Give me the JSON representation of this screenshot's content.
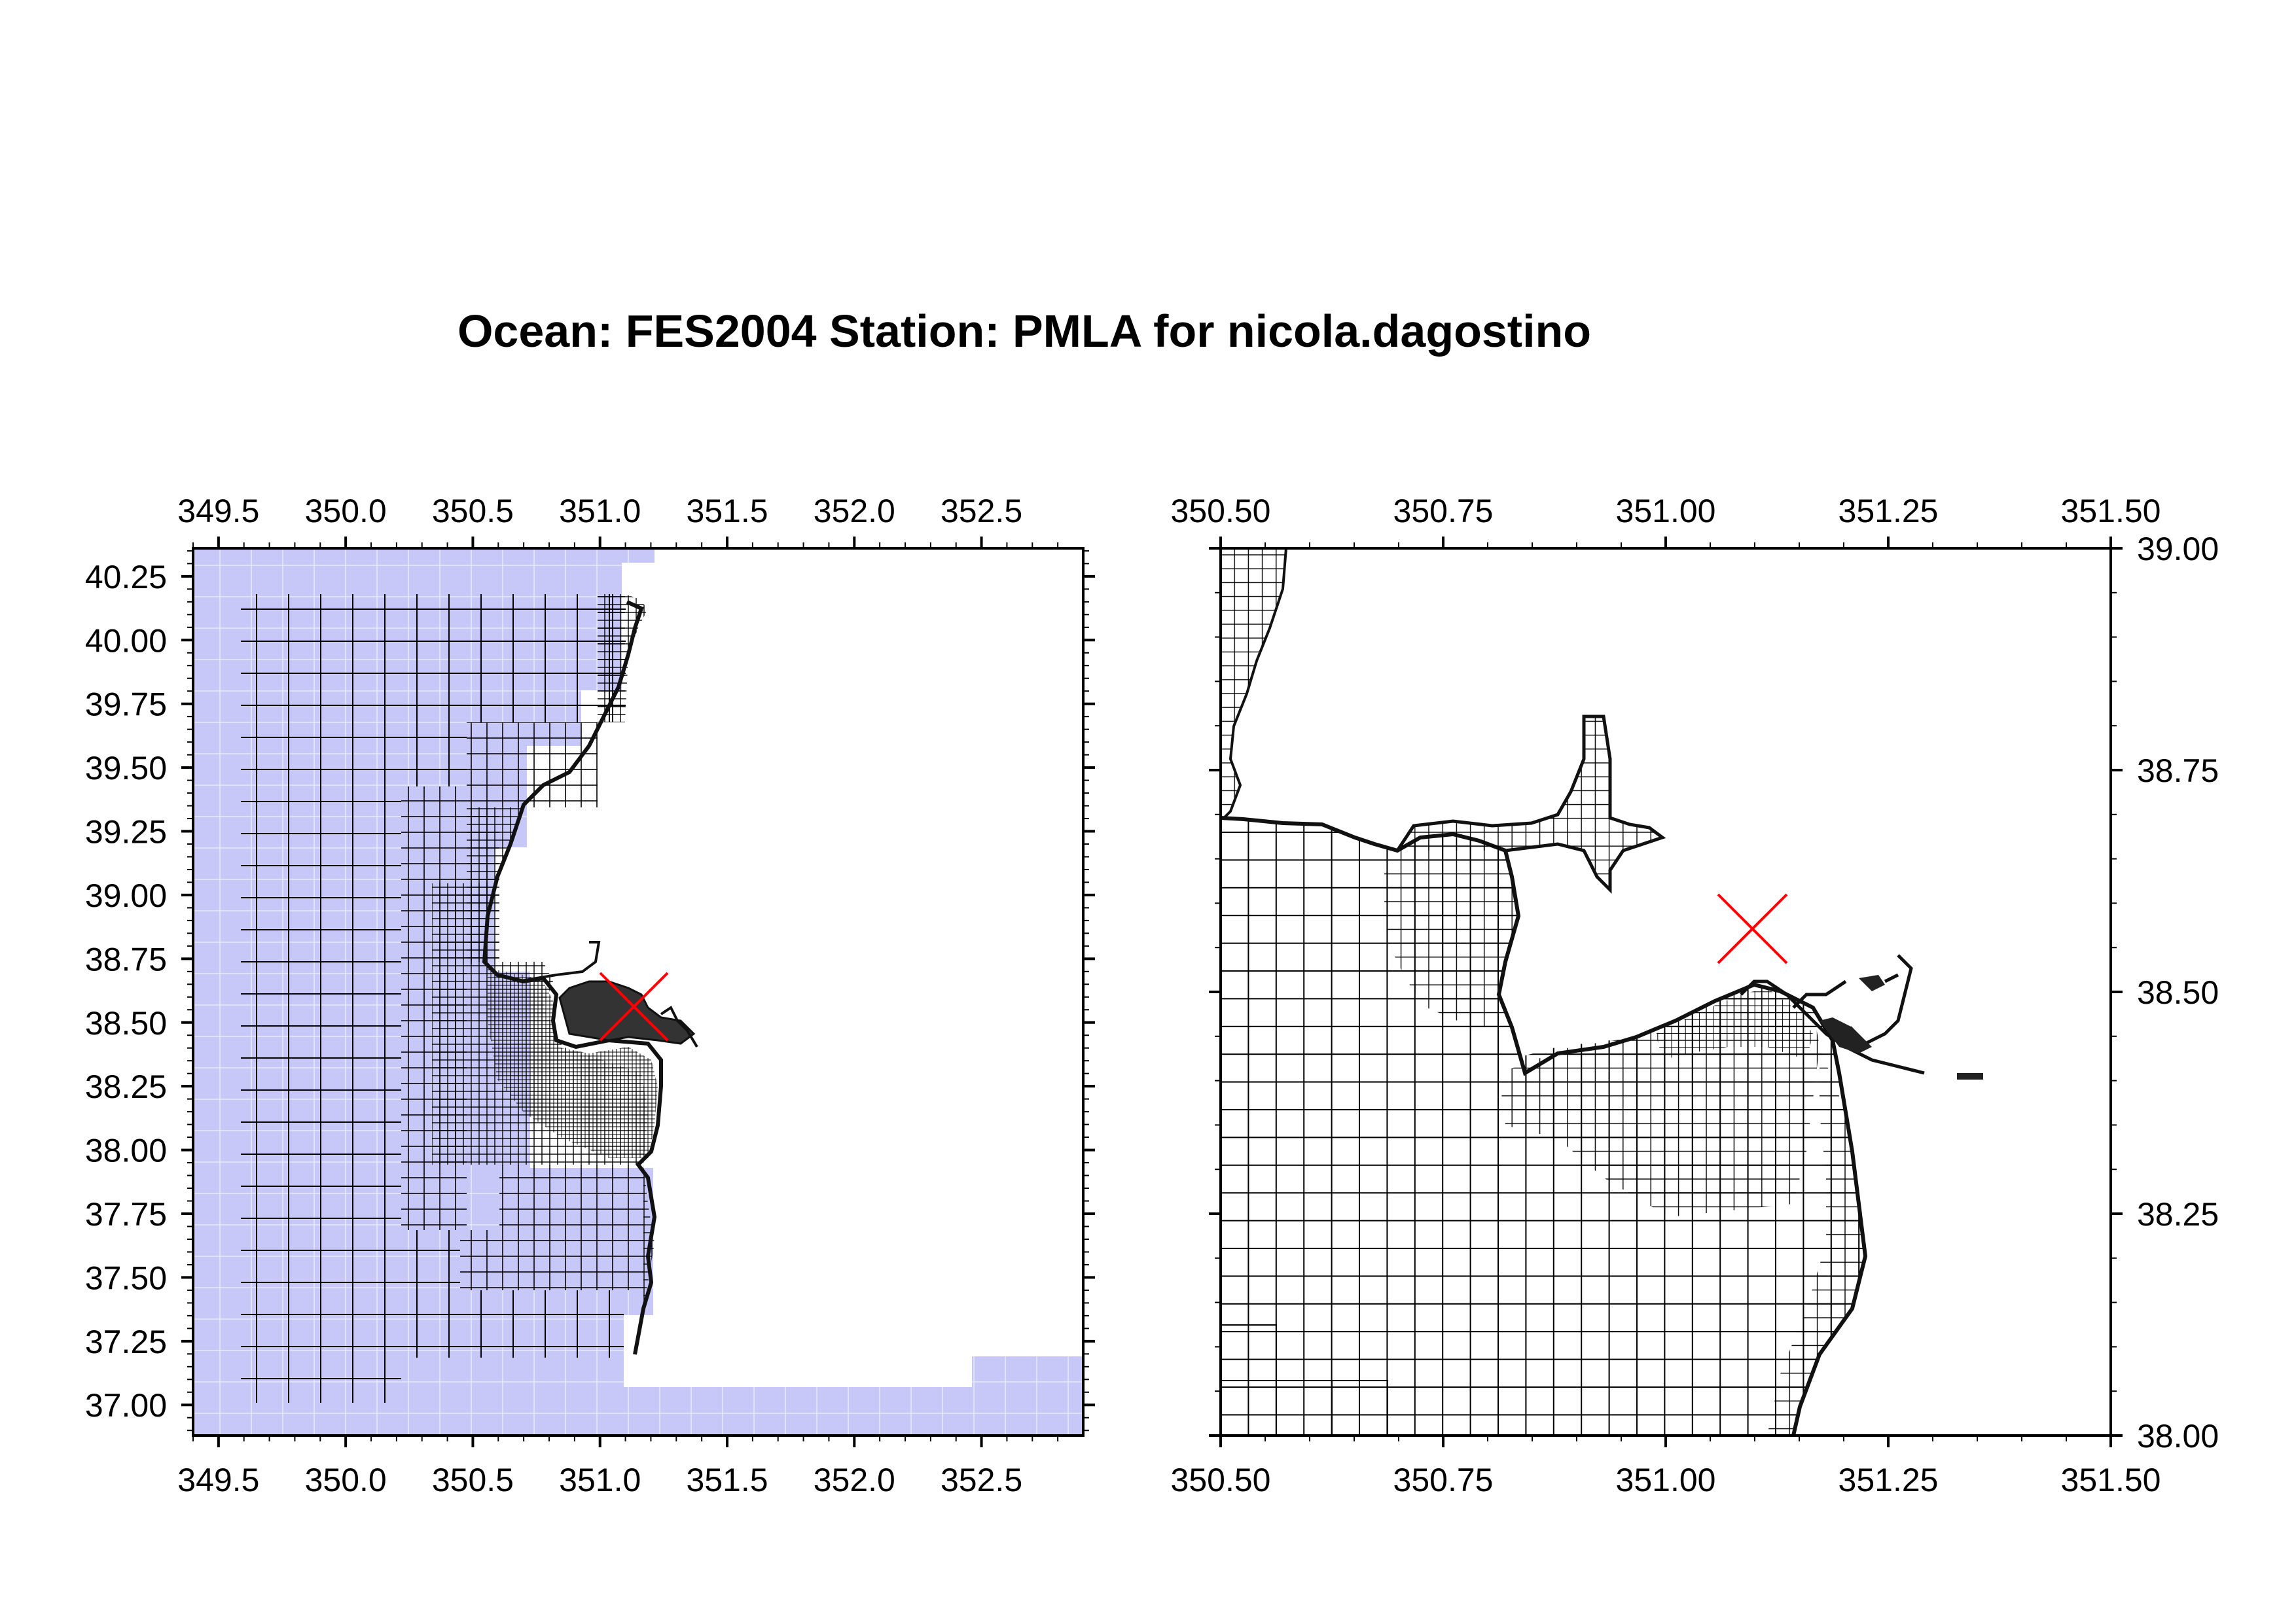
{
  "title": "Ocean: FES2004  Station: PMLA  for nicola.dagostino",
  "colors": {
    "ocean_shade": "#c8c8f8",
    "cell_grid": "#000000",
    "station_marker": "#ff0000",
    "frame": "#000000"
  },
  "left_map": {
    "x_range": [
      349.4,
      352.9
    ],
    "y_range": [
      36.88,
      40.36
    ],
    "x_ticks": [
      "349.5",
      "350.0",
      "350.5",
      "351.0",
      "351.5",
      "352.0",
      "352.5"
    ],
    "y_ticks": [
      "37.00",
      "37.25",
      "37.50",
      "37.75",
      "38.00",
      "38.25",
      "38.50",
      "38.75",
      "39.00",
      "39.25",
      "39.50",
      "39.75",
      "40.00",
      "40.25"
    ],
    "x_axis_labels": "top-and-bottom",
    "y_axis_labels": "left",
    "station_marker": {
      "lon": 351.08,
      "lat": 38.57,
      "symbol": "x-icon"
    }
  },
  "right_map": {
    "x_range": [
      350.5,
      351.5
    ],
    "y_range": [
      38.0,
      39.0
    ],
    "x_ticks": [
      "350.50",
      "350.75",
      "351.00",
      "351.25",
      "351.50"
    ],
    "y_ticks": [
      "38.00",
      "38.25",
      "38.50",
      "38.75",
      "39.00"
    ],
    "x_axis_labels": "top-and-bottom",
    "y_axis_labels": "right",
    "station_marker": {
      "lon": 351.1,
      "lat": 38.57,
      "symbol": "x-icon"
    }
  }
}
